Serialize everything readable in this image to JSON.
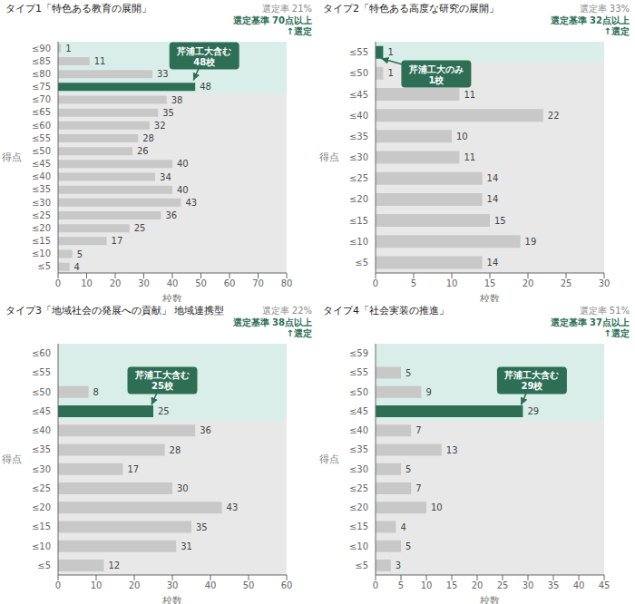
{
  "chart_data": [
    {
      "type": "bar",
      "orientation": "horizontal",
      "title": "タイプ1「特色ある教育の展開」",
      "categories": [
        "≤90",
        "≤85",
        "≤80",
        "≤75",
        "≤70",
        "≤65",
        "≤60",
        "≤55",
        "≤50",
        "≤45",
        "≤40",
        "≤35",
        "≤30",
        "≤25",
        "≤20",
        "≤15",
        "≤10",
        "≤5"
      ],
      "values": [
        1,
        11,
        33,
        48,
        38,
        35,
        32,
        28,
        26,
        40,
        34,
        40,
        43,
        36,
        25,
        17,
        5,
        4
      ],
      "colors": [
        "#c8c8c8",
        "#c8c8c8",
        "#c8c8c8",
        "#2d6e55",
        "#c8c8c8",
        "#c8c8c8",
        "#c8c8c8",
        "#c8c8c8",
        "#c8c8c8",
        "#c8c8c8",
        "#c8c8c8",
        "#c8c8c8",
        "#c8c8c8",
        "#c8c8c8",
        "#c8c8c8",
        "#c8c8c8",
        "#c8c8c8",
        "#c8c8c8"
      ],
      "xlim": [
        0,
        80
      ],
      "xticks": [
        0,
        10,
        20,
        30,
        40,
        50,
        60,
        70,
        80
      ],
      "xlabel": "校数",
      "ylabel": "得点",
      "data_labels": true,
      "grid": false,
      "annotations": [
        {
          "text": "選定率 21%",
          "color": "#888888"
        },
        {
          "text": "選定基準 70点以上\n↑選定",
          "color": "#2d6e55"
        },
        {
          "text": "芹浦工大含む\n48校",
          "color": "#2d6e55",
          "category": "≤75"
        }
      ]
    },
    {
      "type": "bar",
      "orientation": "horizontal",
      "title": "タイプ2「特色ある高度な研究の展開」",
      "categories": [
        "≤55",
        "≤50",
        "≤45",
        "≤40",
        "≤35",
        "≤30",
        "≤25",
        "≤20",
        "≤15",
        "≤10",
        "≤5"
      ],
      "values": [
        1,
        1,
        11,
        22,
        10,
        11,
        14,
        14,
        15,
        19,
        14
      ],
      "colors": [
        "#2d6e55",
        "#c8c8c8",
        "#c8c8c8",
        "#c8c8c8",
        "#c8c8c8",
        "#c8c8c8",
        "#c8c8c8",
        "#c8c8c8",
        "#c8c8c8",
        "#c8c8c8",
        "#c8c8c8"
      ],
      "xlim": [
        0,
        30
      ],
      "xticks": [
        0,
        5,
        10,
        15,
        20,
        25,
        30
      ],
      "xlabel": "校数",
      "ylabel": "得点",
      "data_labels": true,
      "grid": false,
      "annotations": [
        {
          "text": "選定率 33%",
          "color": "#888888"
        },
        {
          "text": "選定基準 32点以上\n↑選定",
          "color": "#2d6e55"
        },
        {
          "text": "芹浦工大のみ\n1校",
          "color": "#2d6e55",
          "category": "≤55"
        }
      ]
    },
    {
      "type": "bar",
      "orientation": "horizontal",
      "title": "タイプ3「地域社会の発展への貢献」 地域連携型",
      "categories": [
        "≤60",
        "≤55",
        "≤50",
        "≤45",
        "≤40",
        "≤35",
        "≤30",
        "≤25",
        "≤20",
        "≤15",
        "≤10",
        "≤5"
      ],
      "values": [
        0,
        0,
        8,
        25,
        36,
        28,
        17,
        30,
        43,
        35,
        31,
        12
      ],
      "colors": [
        "#c8c8c8",
        "#c8c8c8",
        "#c8c8c8",
        "#2d6e55",
        "#c8c8c8",
        "#c8c8c8",
        "#c8c8c8",
        "#c8c8c8",
        "#c8c8c8",
        "#c8c8c8",
        "#c8c8c8",
        "#c8c8c8"
      ],
      "xlim": [
        0,
        60
      ],
      "xticks": [
        0,
        10,
        20,
        30,
        40,
        50,
        60
      ],
      "xlabel": "校数",
      "ylabel": "得点",
      "data_labels": true,
      "grid": false,
      "annotations": [
        {
          "text": "選定率 22%",
          "color": "#888888"
        },
        {
          "text": "選定基準 38点以上\n↑選定",
          "color": "#2d6e55"
        },
        {
          "text": "芹浦工大含む\n25校",
          "color": "#2d6e55",
          "category": "≤45"
        }
      ]
    },
    {
      "type": "bar",
      "orientation": "horizontal",
      "title": "タイプ4「社会実装の推進」",
      "categories": [
        "≤59",
        "≤55",
        "≤50",
        "≤45",
        "≤40",
        "≤35",
        "≤30",
        "≤25",
        "≤20",
        "≤15",
        "≤10",
        "≤5"
      ],
      "values": [
        0,
        5,
        9,
        29,
        7,
        13,
        5,
        7,
        10,
        4,
        5,
        3
      ],
      "colors": [
        "#c8c8c8",
        "#c8c8c8",
        "#c8c8c8",
        "#2d6e55",
        "#c8c8c8",
        "#c8c8c8",
        "#c8c8c8",
        "#c8c8c8",
        "#c8c8c8",
        "#c8c8c8",
        "#c8c8c8",
        "#c8c8c8"
      ],
      "xlim": [
        0,
        45
      ],
      "xticks": [
        0,
        5,
        10,
        15,
        20,
        25,
        30,
        35,
        40,
        45
      ],
      "xlabel": "校数",
      "ylabel": "得点",
      "data_labels": true,
      "grid": false,
      "annotations": [
        {
          "text": "選定率 51%",
          "color": "#888888"
        },
        {
          "text": "選定基準 37点以上\n↑選定",
          "color": "#2d6e55"
        },
        {
          "text": "芹浦工大含む\n29校",
          "color": "#2d6e55",
          "category": "≤45"
        }
      ]
    }
  ]
}
